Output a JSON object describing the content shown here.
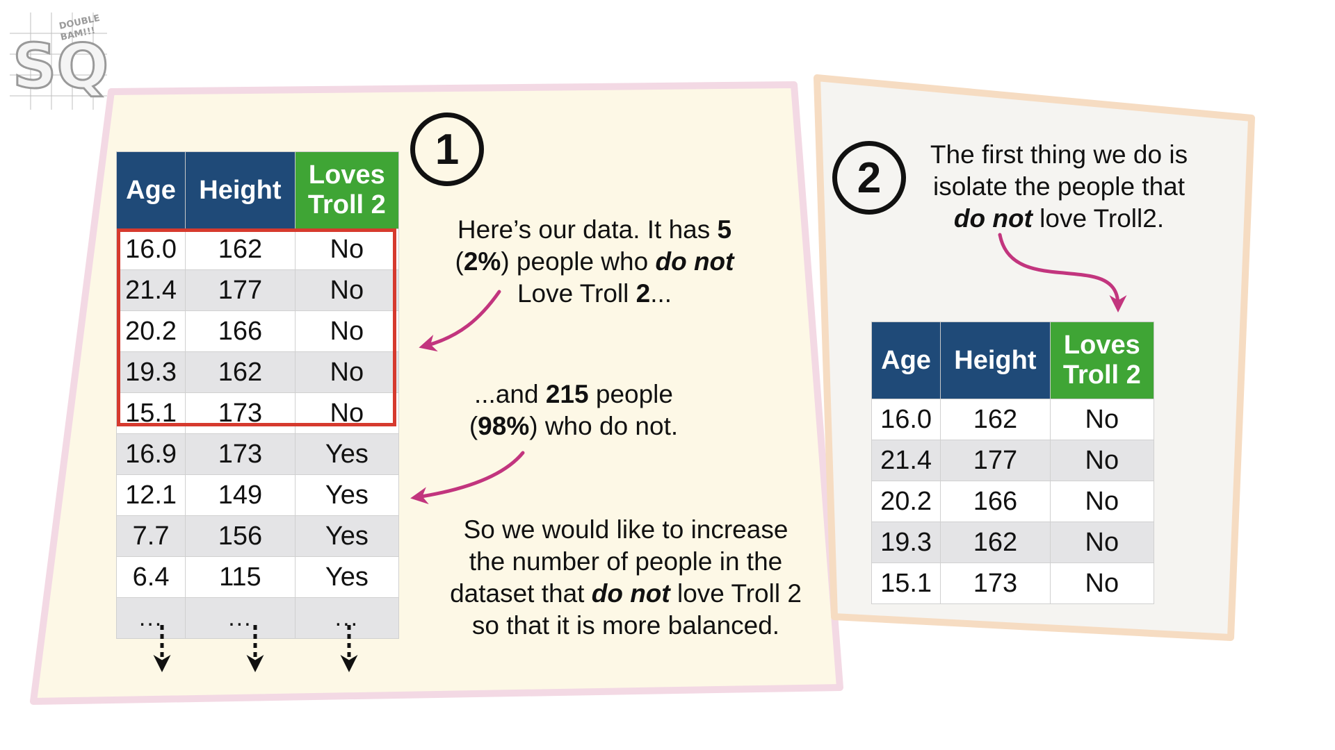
{
  "colors": {
    "header_blue": "#1f4a78",
    "header_green": "#3fa535",
    "highlight_red": "#d63a2e",
    "arrow_magenta": "#c2357e",
    "panel1_fill": "#fdf8e6",
    "panel2_fill": "#f5f4f1"
  },
  "logo": {
    "text": "SQ!",
    "tagline": "DOUBLE BAM!!!"
  },
  "step1": {
    "number": "1"
  },
  "step2": {
    "number": "2"
  },
  "table1": {
    "headers": {
      "age": "Age",
      "height": "Height",
      "loves_line1": "Loves",
      "loves_line2": "Troll 2"
    },
    "rows": [
      {
        "age": "16.0",
        "height": "162",
        "loves": "No"
      },
      {
        "age": "21.4",
        "height": "177",
        "loves": "No"
      },
      {
        "age": "20.2",
        "height": "166",
        "loves": "No"
      },
      {
        "age": "19.3",
        "height": "162",
        "loves": "No"
      },
      {
        "age": "15.1",
        "height": "173",
        "loves": "No"
      },
      {
        "age": "16.9",
        "height": "173",
        "loves": "Yes"
      },
      {
        "age": "12.1",
        "height": "149",
        "loves": "Yes"
      },
      {
        "age": "7.7",
        "height": "156",
        "loves": "Yes"
      },
      {
        "age": "6.4",
        "height": "115",
        "loves": "Yes"
      }
    ],
    "ellipsis": "..."
  },
  "table2": {
    "headers": {
      "age": "Age",
      "height": "Height",
      "loves_line1": "Loves",
      "loves_line2": "Troll 2"
    },
    "rows": [
      {
        "age": "16.0",
        "height": "162",
        "loves": "No"
      },
      {
        "age": "21.4",
        "height": "177",
        "loves": "No"
      },
      {
        "age": "20.2",
        "height": "166",
        "loves": "No"
      },
      {
        "age": "19.3",
        "height": "162",
        "loves": "No"
      },
      {
        "age": "15.1",
        "height": "173",
        "loves": "No"
      }
    ]
  },
  "notes": {
    "note1": {
      "a": "Here’s our data. It has ",
      "b": "5",
      "c": "(",
      "d": "2%",
      "e": ") people who ",
      "f": "do not",
      "g": "Love Troll ",
      "h": "2",
      "i": "..."
    },
    "note2": {
      "a": "...and ",
      "b": "215",
      "c": " people",
      "d": "(",
      "e": "98%",
      "f": ") who do not."
    },
    "note3": {
      "a": "So we would like to increase the number of people in the dataset that ",
      "b": "do not",
      "c": " love Troll 2 so that it is more balanced."
    },
    "note4": {
      "a": "The first thing we do is isolate the people that",
      "b": "do not",
      "c": " love Troll2."
    }
  }
}
